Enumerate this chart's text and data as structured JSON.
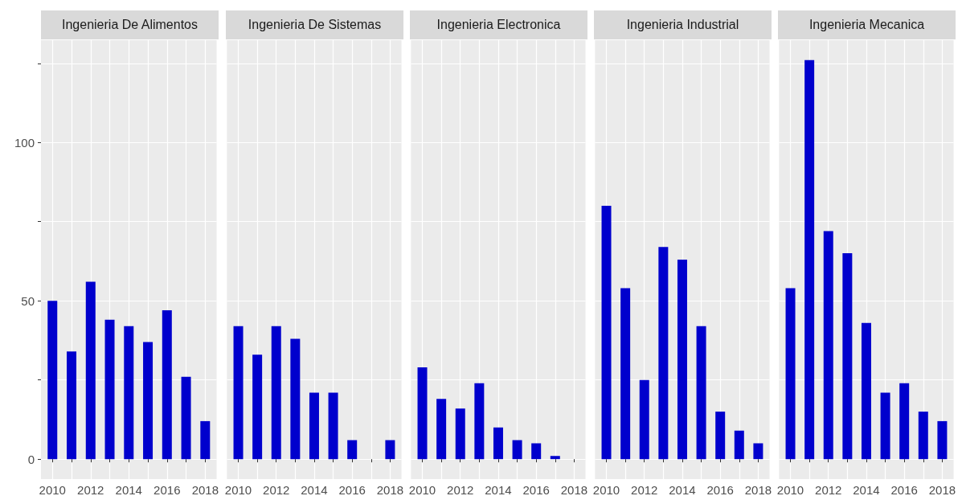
{
  "chart_data": [
    {
      "type": "bar",
      "title": "Ingenieria De Alimentos",
      "x": [
        2010,
        2011,
        2012,
        2013,
        2014,
        2015,
        2016,
        2017,
        2018
      ],
      "values": [
        50,
        34,
        56,
        44,
        42,
        37,
        47,
        26,
        12
      ],
      "color": "#0000cd",
      "xlim": [
        2009.4,
        2018.6
      ],
      "xticks": [
        2010,
        {
          "value": 2011,
          "label": null
        },
        2012,
        {
          "value": 2013,
          "label": null
        },
        2014,
        {
          "value": 2015,
          "label": null
        },
        2016,
        {
          "value": 2017,
          "label": null
        },
        2018
      ],
      "ylim": [
        -6.3,
        132.3
      ],
      "yticks": [
        0,
        {
          "value": 25,
          "label": null
        },
        50,
        {
          "value": 75,
          "label": null
        },
        100,
        {
          "value": 125,
          "label": null
        }
      ],
      "grid": true
    },
    {
      "type": "bar",
      "title": "Ingenieria De Sistemas",
      "x": [
        2010,
        2011,
        2012,
        2013,
        2014,
        2015,
        2016,
        2018
      ],
      "values": [
        42,
        33,
        42,
        38,
        21,
        21,
        6,
        6
      ],
      "color": "#0000cd",
      "xlim": [
        2009.4,
        2018.6
      ],
      "xticks": [
        2010,
        {
          "value": 2011,
          "label": null
        },
        2012,
        {
          "value": 2013,
          "label": null
        },
        2014,
        {
          "value": 2015,
          "label": null
        },
        2016,
        {
          "value": 2017,
          "label": null
        },
        2018
      ],
      "ylim": [
        -6.3,
        132.3
      ],
      "yticks": [
        0,
        {
          "value": 25,
          "label": null
        },
        50,
        {
          "value": 75,
          "label": null
        },
        100,
        {
          "value": 125,
          "label": null
        }
      ],
      "grid": true,
      "tick_labels": "x"
    },
    {
      "type": "bar",
      "title": "Ingenieria Electronica",
      "x": [
        2010,
        2011,
        2012,
        2013,
        2014,
        2015,
        2016,
        2017
      ],
      "values": [
        29,
        19,
        16,
        24,
        10,
        6,
        5,
        1
      ],
      "color": "#0000cd",
      "xlim": [
        2009.4,
        2018.6
      ],
      "xticks": [
        2010,
        {
          "value": 2011,
          "label": null
        },
        2012,
        {
          "value": 2013,
          "label": null
        },
        2014,
        {
          "value": 2015,
          "label": null
        },
        2016,
        {
          "value": 2017,
          "label": null
        },
        2018
      ],
      "ylim": [
        -6.3,
        132.3
      ],
      "yticks": [
        0,
        {
          "value": 25,
          "label": null
        },
        50,
        {
          "value": 75,
          "label": null
        },
        100,
        {
          "value": 125,
          "label": null
        }
      ],
      "grid": true,
      "tick_labels": "x"
    },
    {
      "type": "bar",
      "title": "Ingenieria Industrial",
      "x": [
        2010,
        2011,
        2012,
        2013,
        2014,
        2015,
        2016,
        2017,
        2018
      ],
      "values": [
        80,
        54,
        25,
        67,
        63,
        42,
        15,
        9,
        5
      ],
      "color": "#0000cd",
      "xlim": [
        2009.4,
        2018.6
      ],
      "xticks": [
        2010,
        {
          "value": 2011,
          "label": null
        },
        2012,
        {
          "value": 2013,
          "label": null
        },
        2014,
        {
          "value": 2015,
          "label": null
        },
        2016,
        {
          "value": 2017,
          "label": null
        },
        2018
      ],
      "ylim": [
        -6.3,
        132.3
      ],
      "yticks": [
        0,
        {
          "value": 25,
          "label": null
        },
        50,
        {
          "value": 75,
          "label": null
        },
        100,
        {
          "value": 125,
          "label": null
        }
      ],
      "grid": true,
      "tick_labels": "x"
    },
    {
      "type": "bar",
      "title": "Ingenieria Mecanica",
      "x": [
        2010,
        2011,
        2012,
        2013,
        2014,
        2015,
        2016,
        2017,
        2018
      ],
      "values": [
        54,
        126,
        72,
        65,
        43,
        21,
        24,
        15,
        12
      ],
      "color": "#0000cd",
      "xlim": [
        2009.4,
        2018.6
      ],
      "xticks": [
        2010,
        {
          "value": 2011,
          "label": null
        },
        2012,
        {
          "value": 2013,
          "label": null
        },
        2014,
        {
          "value": 2015,
          "label": null
        },
        2016,
        {
          "value": 2017,
          "label": null
        },
        2018
      ],
      "ylim": [
        -6.3,
        132.3
      ],
      "yticks": [
        0,
        {
          "value": 25,
          "label": null
        },
        50,
        {
          "value": 75,
          "label": null
        },
        100,
        {
          "value": 125,
          "label": null
        }
      ],
      "grid": true,
      "tick_labels": "x"
    }
  ]
}
